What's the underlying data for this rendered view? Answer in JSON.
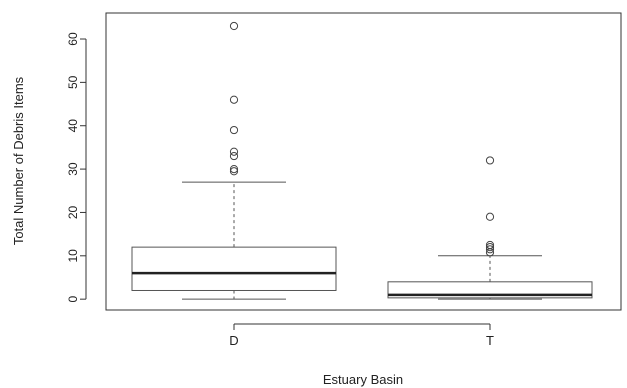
{
  "chart_data": {
    "type": "boxplot",
    "title": "",
    "xlabel": "Estuary Basin",
    "ylabel": "Total Number of Debris Items",
    "ylim": [
      -2.5,
      66
    ],
    "y_ticks": [
      0,
      10,
      20,
      30,
      40,
      50,
      60
    ],
    "categories": [
      "D",
      "T"
    ],
    "boxes": [
      {
        "name": "D",
        "whisker_low": 0,
        "q1": 2,
        "median": 6,
        "q3": 12,
        "whisker_high": 27,
        "outliers": [
          29.5,
          30,
          33,
          34,
          39,
          46,
          63
        ]
      },
      {
        "name": "T",
        "whisker_low": 0,
        "q1": 0.3,
        "median": 1,
        "q3": 4,
        "whisker_high": 10,
        "outliers": [
          10.8,
          11.5,
          12,
          12.5,
          19,
          32
        ]
      }
    ],
    "grid": false,
    "legend": "none",
    "colors": {
      "box": "#555555",
      "median": "#222222",
      "outlier": "#444444",
      "axis": "#333333"
    }
  }
}
